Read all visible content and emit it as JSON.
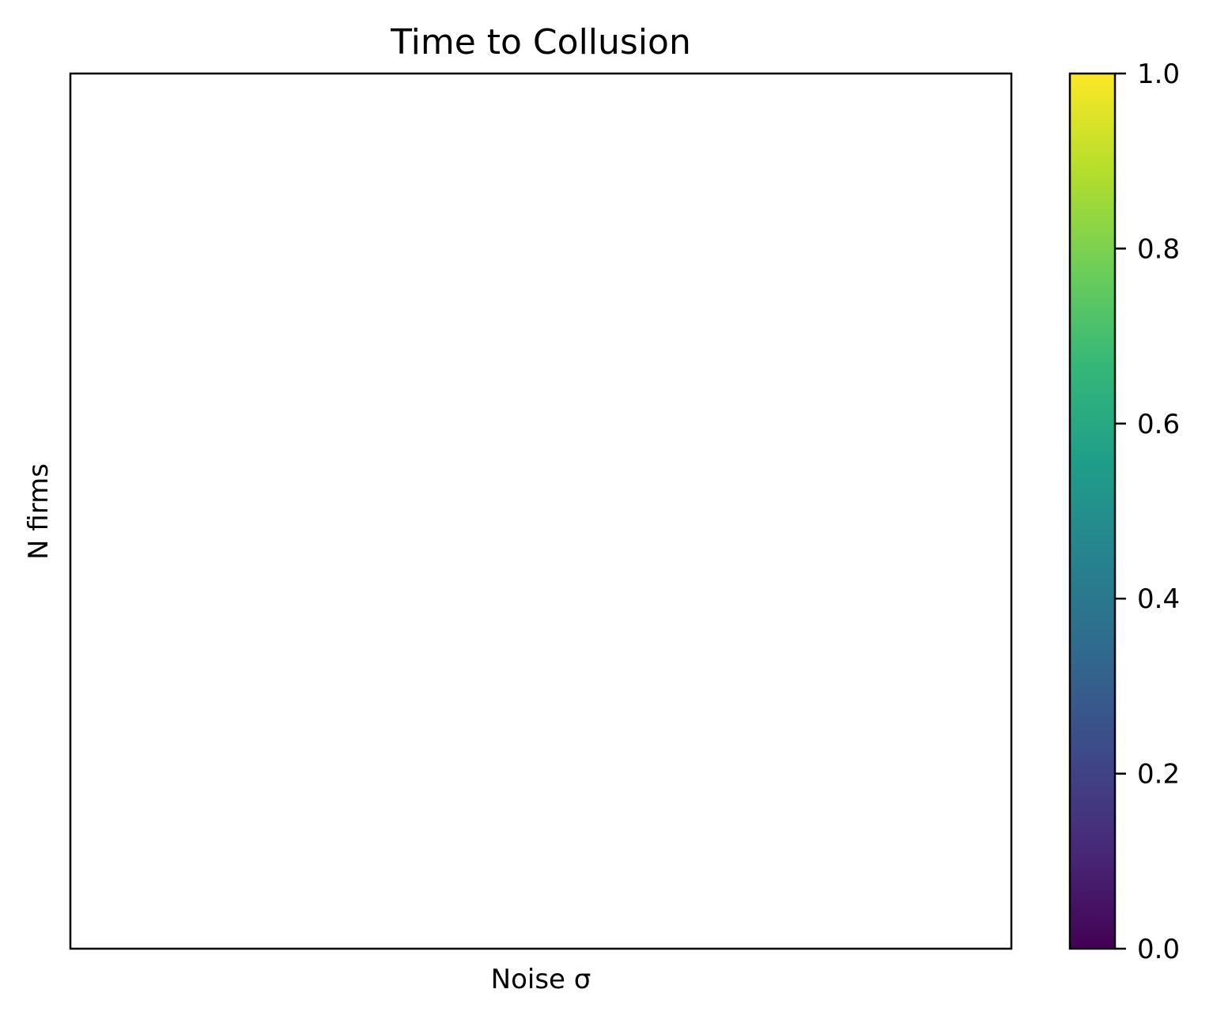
{
  "chart_data": {
    "type": "heatmap",
    "title": "Time to Collusion",
    "xlabel": "Noise σ",
    "ylabel": "N firms",
    "x_categories": [],
    "y_categories": [],
    "values": [],
    "grid": false,
    "colorbar": {
      "colormap": "viridis",
      "range": [
        0.0,
        1.0
      ],
      "ticks": [
        0.0,
        0.2,
        0.4,
        0.6,
        0.8,
        1.0
      ],
      "tick_labels": [
        "0.0",
        "0.2",
        "0.4",
        "0.6",
        "0.8",
        "1.0"
      ],
      "stops": [
        "#440154",
        "#482878",
        "#3e4989",
        "#31688e",
        "#26828e",
        "#1f9e89",
        "#35b779",
        "#6ece58",
        "#b5de2b",
        "#fde725"
      ],
      "placement": "right"
    }
  }
}
